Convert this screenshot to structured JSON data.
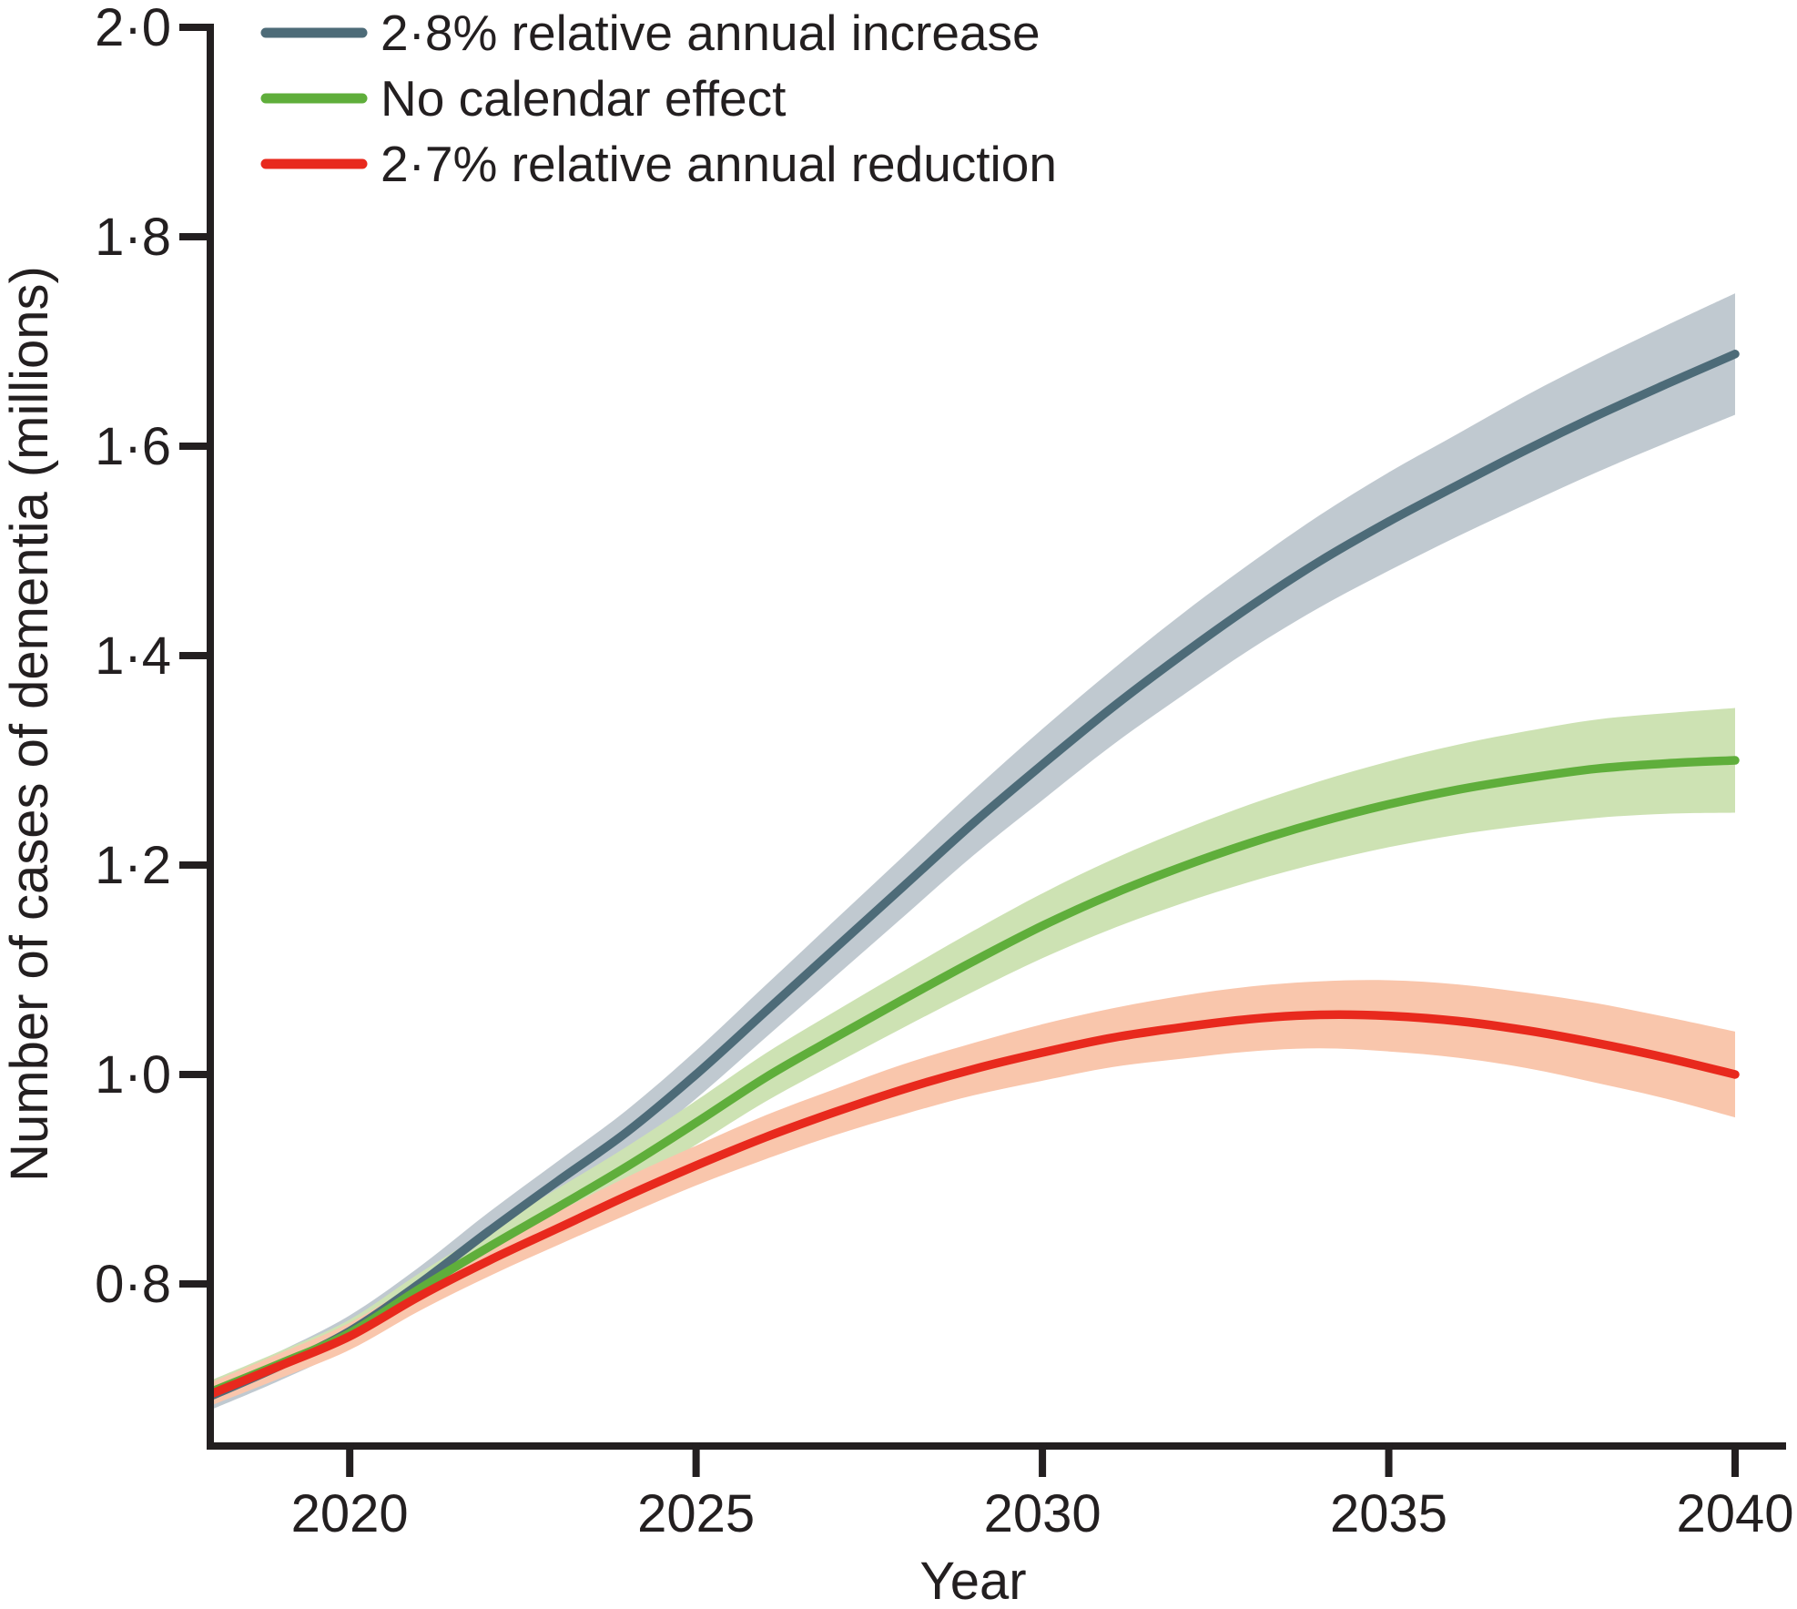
{
  "chart_data": {
    "type": "line",
    "xlabel": "Year",
    "ylabel": "Number of cases of dementia (millions)",
    "xlim": [
      2018,
      2040
    ],
    "ylim": [
      0.645,
      2.0
    ],
    "grid": false,
    "legend_position": "top-left",
    "background_color": "#ffffff",
    "axis_color": "#231f20",
    "x": [
      2018,
      2019,
      2020,
      2021,
      2022,
      2023,
      2024,
      2025,
      2026,
      2027,
      2028,
      2029,
      2030,
      2031,
      2032,
      2033,
      2034,
      2035,
      2036,
      2037,
      2038,
      2039,
      2040
    ],
    "x_ticks": [
      {
        "value": 2020,
        "label": "2020"
      },
      {
        "value": 2025,
        "label": "2025"
      },
      {
        "value": 2030,
        "label": "2030"
      },
      {
        "value": 2035,
        "label": "2035"
      },
      {
        "value": 2040,
        "label": "2040"
      }
    ],
    "y_ticks": [
      {
        "value": 2.0,
        "label": "2·0"
      },
      {
        "value": 1.8,
        "label": "1·8"
      },
      {
        "value": 1.6,
        "label": "1·6"
      },
      {
        "value": 1.4,
        "label": "1·4"
      },
      {
        "value": 1.2,
        "label": "1·2"
      },
      {
        "value": 1.0,
        "label": "1·0"
      },
      {
        "value": 0.8,
        "label": "0·8"
      }
    ],
    "series": [
      {
        "key": "increase",
        "label": "2·8% relative annual increase",
        "color": "#4d6b78",
        "band_color": "#c0c9d0",
        "values": [
          0.693,
          0.722,
          0.755,
          0.8,
          0.85,
          0.898,
          0.945,
          1.0,
          1.06,
          1.12,
          1.18,
          1.24,
          1.296,
          1.35,
          1.4,
          1.447,
          1.49,
          1.528,
          1.563,
          1.597,
          1.629,
          1.659,
          1.688
        ],
        "ci_half_width": [
          0.013,
          0.014,
          0.015,
          0.016,
          0.018,
          0.019,
          0.021,
          0.023,
          0.025,
          0.027,
          0.029,
          0.031,
          0.034,
          0.036,
          0.039,
          0.041,
          0.044,
          0.047,
          0.049,
          0.052,
          0.054,
          0.056,
          0.058
        ]
      },
      {
        "key": "no-effect",
        "label": "No calendar effect",
        "color": "#5fae3b",
        "band_color": "#cde2b3",
        "values": [
          0.697,
          0.724,
          0.753,
          0.795,
          0.835,
          0.873,
          0.912,
          0.954,
          0.997,
          1.035,
          1.072,
          1.108,
          1.142,
          1.172,
          1.198,
          1.221,
          1.241,
          1.258,
          1.272,
          1.283,
          1.292,
          1.297,
          1.3
        ],
        "ci_half_width": [
          0.011,
          0.012,
          0.013,
          0.015,
          0.016,
          0.018,
          0.019,
          0.021,
          0.023,
          0.025,
          0.027,
          0.029,
          0.031,
          0.033,
          0.035,
          0.037,
          0.039,
          0.041,
          0.043,
          0.045,
          0.047,
          0.048,
          0.05
        ]
      },
      {
        "key": "reduction",
        "label": "2·7% relative annual reduction",
        "color": "#e8291d",
        "band_color": "#f9c6ac",
        "values": [
          0.695,
          0.722,
          0.75,
          0.788,
          0.822,
          0.853,
          0.884,
          0.913,
          0.94,
          0.964,
          0.986,
          1.005,
          1.021,
          1.035,
          1.045,
          1.053,
          1.057,
          1.056,
          1.051,
          1.042,
          1.03,
          1.016,
          1.0
        ],
        "ci_half_width": [
          0.011,
          0.012,
          0.013,
          0.014,
          0.015,
          0.016,
          0.018,
          0.019,
          0.021,
          0.022,
          0.024,
          0.025,
          0.027,
          0.028,
          0.03,
          0.031,
          0.032,
          0.034,
          0.035,
          0.036,
          0.038,
          0.039,
          0.041
        ]
      }
    ]
  }
}
